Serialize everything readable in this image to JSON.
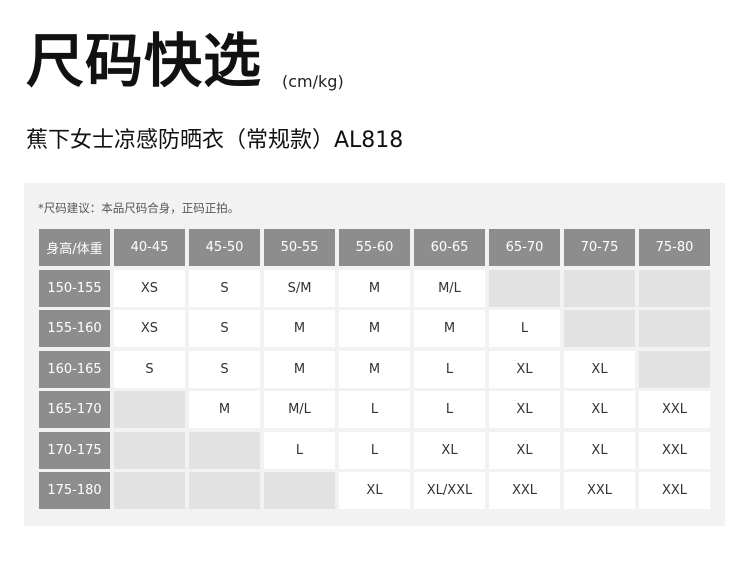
{
  "title": "尺码快选",
  "unit": "(cm/kg)",
  "subtitle": "蕉下女士凉感防晒衣（常规款）AL818",
  "note": "*尺码建议：本品尺码合身，正码正拍。",
  "table": {
    "corner": "身高/体重",
    "weights": [
      "40-45",
      "45-50",
      "50-55",
      "55-60",
      "60-65",
      "65-70",
      "70-75",
      "75-80"
    ],
    "rows": [
      {
        "height": "150-155",
        "sizes": [
          "XS",
          "S",
          "S/M",
          "M",
          "M/L",
          "",
          "",
          ""
        ]
      },
      {
        "height": "155-160",
        "sizes": [
          "XS",
          "S",
          "M",
          "M",
          "M",
          "L",
          "",
          ""
        ]
      },
      {
        "height": "160-165",
        "sizes": [
          "S",
          "S",
          "M",
          "M",
          "L",
          "XL",
          "XL",
          ""
        ]
      },
      {
        "height": "165-170",
        "sizes": [
          "",
          "M",
          "M/L",
          "L",
          "L",
          "XL",
          "XL",
          "XXL"
        ]
      },
      {
        "height": "170-175",
        "sizes": [
          "",
          "",
          "L",
          "L",
          "XL",
          "XL",
          "XL",
          "XXL"
        ]
      },
      {
        "height": "175-180",
        "sizes": [
          "",
          "",
          "",
          "XL",
          "XL/XXL",
          "XXL",
          "XXL",
          "XXL"
        ]
      }
    ]
  }
}
